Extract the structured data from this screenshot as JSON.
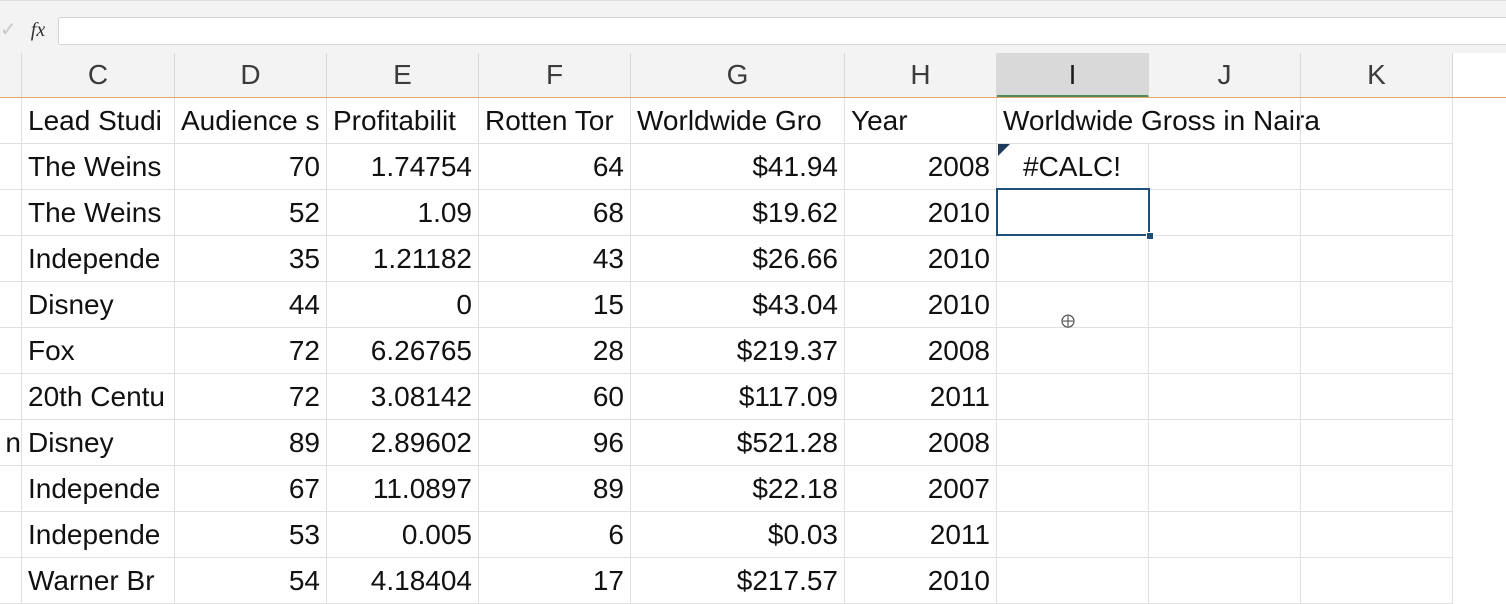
{
  "formula_bar": {
    "check_icon": "check-icon",
    "fx_label": "fx",
    "value": ""
  },
  "columns": [
    "C",
    "D",
    "E",
    "F",
    "G",
    "H",
    "I",
    "J",
    "K"
  ],
  "selected_column": "I",
  "header_row": {
    "C": "Lead Studi",
    "D": "Audience s",
    "E": "Profitabilit",
    "F": "Rotten Tor",
    "G": "Worldwide Gro",
    "H": "Year",
    "I": "Worldwide Gross in Naira"
  },
  "rows": [
    {
      "B": "",
      "C": "The Weins",
      "D": "70",
      "E": "1.74754",
      "F": "64",
      "G": "$41.94",
      "H": "2008",
      "I": "#CALC!"
    },
    {
      "B": "",
      "C": "The Weins",
      "D": "52",
      "E": "1.09",
      "F": "68",
      "G": "$19.62",
      "H": "2010",
      "I": ""
    },
    {
      "B": "",
      "C": "Independe",
      "D": "35",
      "E": "1.21182",
      "F": "43",
      "G": "$26.66",
      "H": "2010",
      "I": ""
    },
    {
      "B": "",
      "C": "Disney",
      "D": "44",
      "E": "0",
      "F": "15",
      "G": "$43.04",
      "H": "2010",
      "I": ""
    },
    {
      "B": "",
      "C": "Fox",
      "D": "72",
      "E": "6.26765",
      "F": "28",
      "G": "$219.37",
      "H": "2008",
      "I": ""
    },
    {
      "B": "",
      "C": "20th Centu",
      "D": "72",
      "E": "3.08142",
      "F": "60",
      "G": "$117.09",
      "H": "2011",
      "I": ""
    },
    {
      "B": "n",
      "C": "Disney",
      "D": "89",
      "E": "2.89602",
      "F": "96",
      "G": "$521.28",
      "H": "2008",
      "I": ""
    },
    {
      "B": "",
      "C": "Independe",
      "D": "67",
      "E": "11.0897",
      "F": "89",
      "G": "$22.18",
      "H": "2007",
      "I": ""
    },
    {
      "B": "",
      "C": "Independe",
      "D": "53",
      "E": "0.005",
      "F": "6",
      "G": "$0.03",
      "H": "2011",
      "I": ""
    },
    {
      "B": "",
      "C": "Warner Br",
      "D": "54",
      "E": "4.18404",
      "F": "17",
      "G": "$217.57",
      "H": "2010",
      "I": ""
    }
  ],
  "colors": {
    "selection_border": "#1f4e79",
    "selected_header_underline": "#4f8b5b",
    "frozen_line": "#e6a36a"
  }
}
